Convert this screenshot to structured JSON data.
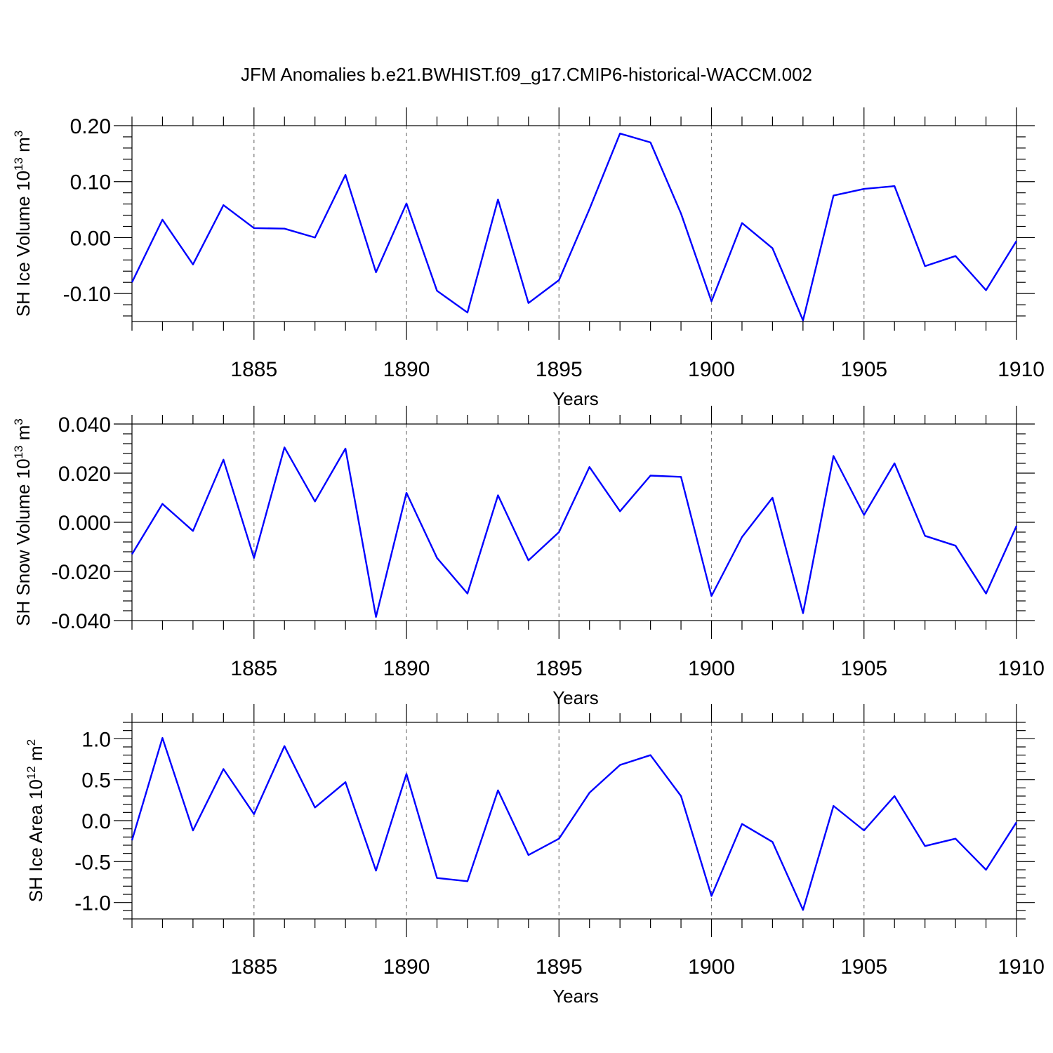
{
  "title": "JFM Anomalies b.e21.BWHIST.f09_g17.CMIP6-historical-WACCM.002",
  "colors": {
    "line": "#0000ff",
    "grid": "#777777"
  },
  "chart_data": [
    {
      "type": "line",
      "xlabel": "Years",
      "ylabel_main": "SH Ice Volume 10",
      "ylabel_exp": "13",
      "ylabel_unit": " m",
      "ylabel_unit_exp": "3",
      "xlim": [
        1881,
        1910
      ],
      "ylim": [
        -0.15,
        0.2
      ],
      "yticks": [
        -0.1,
        0.0,
        0.1,
        0.2
      ],
      "ytick_labels": [
        "-0.10",
        "0.00",
        "0.10",
        "0.20"
      ],
      "xticks": [
        1885,
        1890,
        1895,
        1900,
        1905,
        1910
      ],
      "xtick_labels": [
        "1885",
        "1890",
        "1895",
        "1900",
        "1905",
        "1910"
      ],
      "grid_x": [
        1885,
        1890,
        1895,
        1900,
        1905
      ],
      "x": [
        1881,
        1882,
        1883,
        1884,
        1885,
        1886,
        1887,
        1888,
        1889,
        1890,
        1891,
        1892,
        1893,
        1894,
        1895,
        1896,
        1897,
        1898,
        1899,
        1900,
        1901,
        1902,
        1903,
        1904,
        1905,
        1906,
        1907,
        1908,
        1909,
        1910
      ],
      "values": [
        -0.08,
        0.032,
        -0.048,
        0.058,
        0.017,
        0.016,
        0.0,
        0.112,
        -0.062,
        0.061,
        -0.095,
        -0.134,
        0.068,
        -0.117,
        -0.076,
        0.051,
        0.186,
        0.17,
        0.043,
        -0.114,
        0.026,
        -0.019,
        -0.148,
        0.075,
        0.087,
        0.092,
        -0.051,
        -0.033,
        -0.094,
        -0.006
      ]
    },
    {
      "type": "line",
      "xlabel": "Years",
      "ylabel_main": "SH Snow Volume 10",
      "ylabel_exp": "13",
      "ylabel_unit": " m",
      "ylabel_unit_exp": "3",
      "xlim": [
        1881,
        1910
      ],
      "ylim": [
        -0.04,
        0.04
      ],
      "yticks": [
        -0.04,
        -0.02,
        0.0,
        0.02,
        0.04
      ],
      "ytick_labels": [
        "-0.040",
        "-0.020",
        "0.000",
        "0.020",
        "0.040"
      ],
      "xticks": [
        1885,
        1890,
        1895,
        1900,
        1905,
        1910
      ],
      "xtick_labels": [
        "1885",
        "1890",
        "1895",
        "1900",
        "1905",
        "1910"
      ],
      "grid_x": [
        1885,
        1890,
        1895,
        1900,
        1905
      ],
      "x": [
        1881,
        1882,
        1883,
        1884,
        1885,
        1886,
        1887,
        1888,
        1889,
        1890,
        1891,
        1892,
        1893,
        1894,
        1895,
        1896,
        1897,
        1898,
        1899,
        1900,
        1901,
        1902,
        1903,
        1904,
        1905,
        1906,
        1907,
        1908,
        1909,
        1910
      ],
      "values": [
        -0.013,
        0.0075,
        -0.0035,
        0.0255,
        -0.0145,
        0.0305,
        0.0085,
        0.03,
        -0.0385,
        0.012,
        -0.0145,
        -0.029,
        0.011,
        -0.0155,
        -0.004,
        0.0225,
        0.0045,
        0.019,
        0.0185,
        -0.03,
        -0.006,
        0.01,
        -0.037,
        0.027,
        0.003,
        0.024,
        -0.0055,
        -0.0095,
        -0.029,
        -0.0015
      ]
    },
    {
      "type": "line",
      "xlabel": "Years",
      "ylabel_main": "SH Ice Area 10",
      "ylabel_exp": "12",
      "ylabel_unit": " m",
      "ylabel_unit_exp": "2",
      "xlim": [
        1881,
        1910
      ],
      "ylim": [
        -1.2,
        1.2
      ],
      "yticks": [
        -1.0,
        -0.5,
        0.0,
        0.5,
        1.0
      ],
      "ytick_labels": [
        "-1.0",
        "-0.5",
        "0.0",
        "0.5",
        "1.0"
      ],
      "xticks": [
        1885,
        1890,
        1895,
        1900,
        1905,
        1910
      ],
      "xtick_labels": [
        "1885",
        "1890",
        "1895",
        "1900",
        "1905",
        "1910"
      ],
      "grid_x": [
        1885,
        1890,
        1895,
        1900,
        1905
      ],
      "x": [
        1881,
        1882,
        1883,
        1884,
        1885,
        1886,
        1887,
        1888,
        1889,
        1890,
        1891,
        1892,
        1893,
        1894,
        1895,
        1896,
        1897,
        1898,
        1899,
        1900,
        1901,
        1902,
        1903,
        1904,
        1905,
        1906,
        1907,
        1908,
        1909,
        1910
      ],
      "values": [
        -0.24,
        1.01,
        -0.12,
        0.63,
        0.08,
        0.91,
        0.16,
        0.47,
        -0.61,
        0.57,
        -0.7,
        -0.74,
        0.37,
        -0.42,
        -0.22,
        0.34,
        0.68,
        0.8,
        0.3,
        -0.92,
        -0.04,
        -0.26,
        -1.09,
        0.18,
        -0.12,
        0.3,
        -0.31,
        -0.22,
        -0.6,
        -0.02
      ]
    }
  ]
}
